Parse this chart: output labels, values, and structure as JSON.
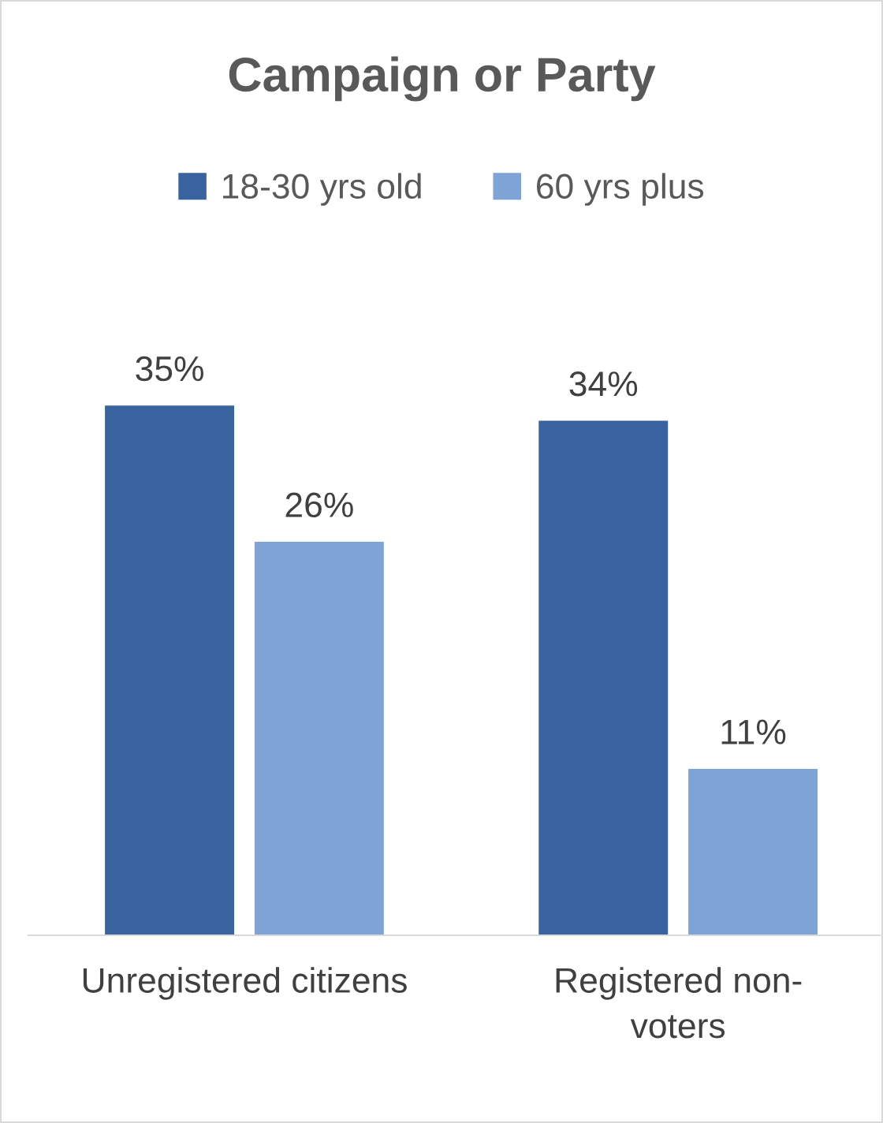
{
  "chart_data": {
    "type": "bar",
    "title": "Campaign or Party",
    "categories": [
      "Unregistered citizens",
      "Registered non-voters"
    ],
    "series": [
      {
        "name": "18-30 yrs old",
        "color": "#38639e",
        "values": [
          35,
          34
        ],
        "value_labels": [
          "35%",
          "34%"
        ]
      },
      {
        "name": "60 yrs plus",
        "color": "#7ea3d4",
        "values": [
          26,
          11
        ],
        "value_labels": [
          "26%",
          "11%"
        ]
      }
    ],
    "legend": "top"
  }
}
